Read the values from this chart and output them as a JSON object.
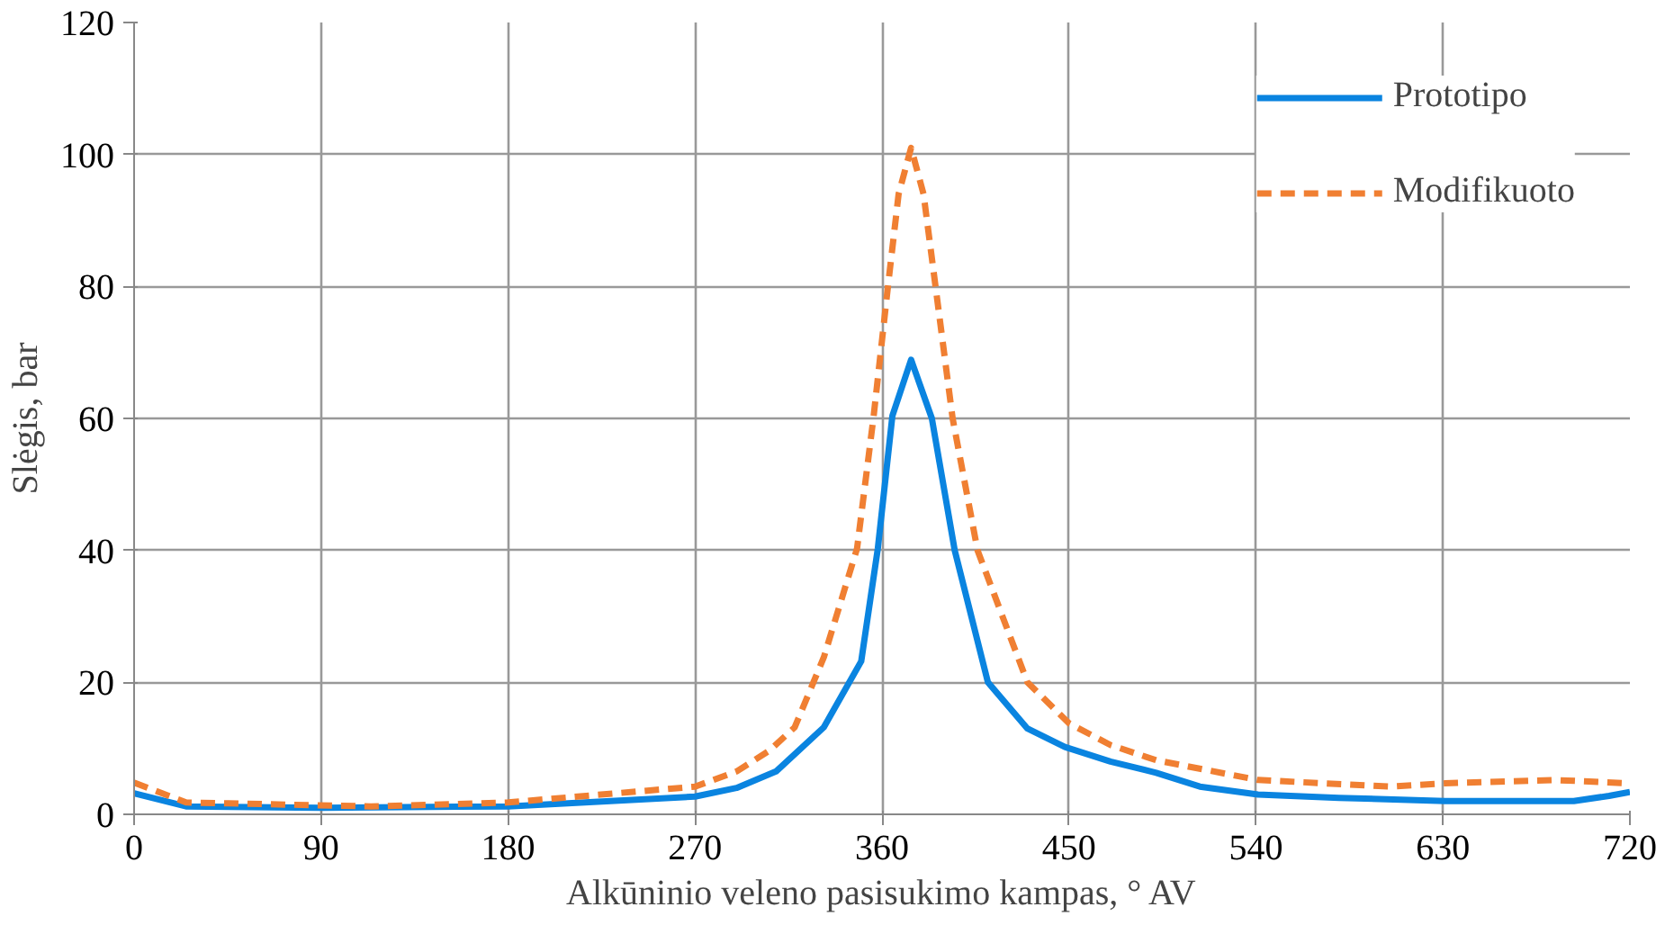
{
  "chart_data": {
    "type": "line",
    "xlabel": "Alkūninio veleno pasisukimo kampas, ° AV",
    "ylabel": "Slėgis, bar",
    "xlim": [
      0,
      720
    ],
    "ylim": [
      0,
      120
    ],
    "xticks": [
      0,
      90,
      180,
      270,
      360,
      450,
      540,
      630,
      720
    ],
    "yticks": [
      0,
      20,
      40,
      60,
      80,
      100,
      120
    ],
    "grid": true,
    "legend": "top right",
    "series": [
      {
        "name": "Prototipo",
        "color": "#0a84e0",
        "line_style": "solid",
        "x": [
          0,
          25,
          90,
          180,
          270,
          290,
          309,
          332,
          350,
          358,
          365,
          374,
          384,
          395,
          411,
          430,
          448,
          470,
          492,
          513,
          541,
          580,
          631,
          693,
          710,
          720
        ],
        "values": [
          3.2,
          1.2,
          1.0,
          1.2,
          2.7,
          4.0,
          6.5,
          13.2,
          23.2,
          40.3,
          60.4,
          68.9,
          60,
          40,
          20,
          13,
          10.2,
          8,
          6.3,
          4.2,
          3.0,
          2.5,
          2.0,
          2.0,
          2.8,
          3.4
        ]
      },
      {
        "name": "Modifikuoto",
        "color": "#f07f32",
        "line_style": "dashed",
        "x": [
          0,
          25,
          114,
          180,
          270,
          290,
          306,
          318,
          332,
          348,
          356,
          363,
          368,
          374,
          380,
          394,
          406,
          430,
          450,
          470,
          492,
          541,
          605,
          631,
          684,
          720
        ],
        "values": [
          4.8,
          1.8,
          1.2,
          1.8,
          4.2,
          6.5,
          9.7,
          13.2,
          23.8,
          40.3,
          60.4,
          80.4,
          94,
          101,
          94,
          60,
          40,
          20,
          13.8,
          10.5,
          8.2,
          5.2,
          4.2,
          4.7,
          5.2,
          4.7
        ]
      }
    ]
  }
}
